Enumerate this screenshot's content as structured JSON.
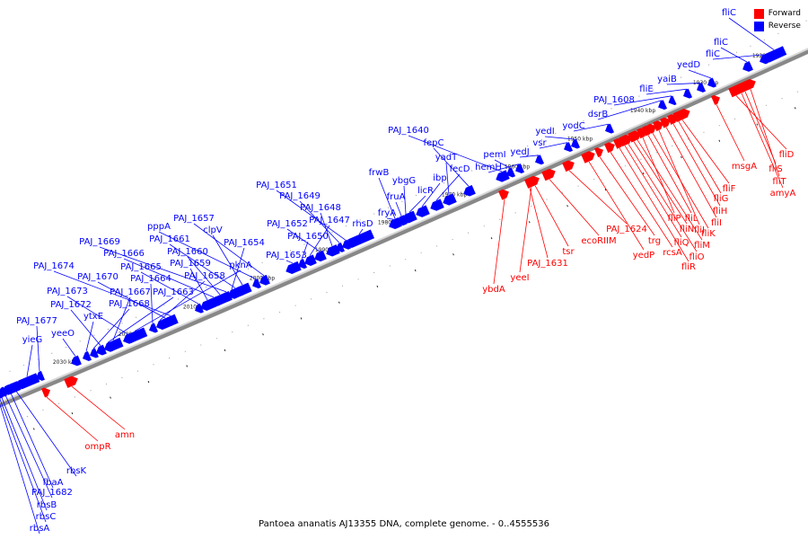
{
  "legend": {
    "forward_label": "Forward",
    "reverse_label": "Reverse",
    "forward_color": "#ff0000",
    "reverse_color": "#0000ff"
  },
  "caption": "Pantoea ananatis AJ13355 DNA, complete genome. - 0..4555536",
  "ticks": [
    "1920 kbp",
    "1930 kbp",
    "1940 kbp",
    "1950 kbp",
    "1960 kbp",
    "1970 kbp",
    "1980 kbp",
    "1990 kbp",
    "2000 kbp",
    "2010 kbp",
    "2020 kbp",
    "2030 kbp"
  ],
  "reverse_genes": [
    "fliC",
    "fliC",
    "fliC",
    "yedD",
    "yaiB",
    "fliE",
    "PAJ_1608",
    "dsrB",
    "yodC",
    "yedI",
    "vsr",
    "yedJ",
    "pemI",
    "hemH",
    "PAJ_1640",
    "fepC",
    "yadT",
    "fecD",
    "ibp",
    "licR",
    "frwB",
    "ybgG",
    "fruA",
    "fryA",
    "rhsD",
    "PAJ_1651",
    "PAJ_1649",
    "PAJ_1648",
    "PAJ_1652",
    "PAJ_1647",
    "PAJ_1650",
    "PAJ_1653",
    "PAJ_1657",
    "pppA",
    "clpV",
    "PAJ_1661",
    "PAJ_1654",
    "PAJ_1669",
    "PAJ_1660",
    "PAJ_1666",
    "PAJ_1659",
    "PAJ_1665",
    "PAJ_1674",
    "PAJ_1670",
    "PAJ_1658",
    "PAJ_1664",
    "pknA",
    "PAJ_1673",
    "PAJ_1667",
    "PAJ_1663",
    "PAJ_1672",
    "PAJ_1668",
    "ytxE",
    "PAJ_1677",
    "yieG",
    "yeeO",
    "rbsK",
    "fbaA",
    "PAJ_1682",
    "rbsB",
    "rbsC",
    "rbsA"
  ],
  "forward_genes": [
    "fliD",
    "fliS",
    "fliT",
    "amyA",
    "msgA",
    "fliF",
    "fliG",
    "fliH",
    "fliI",
    "fliJ",
    "fliK",
    "fliL",
    "fliP",
    "fliM",
    "fliN",
    "fliO",
    "fliQ",
    "fliR",
    "rcsA",
    "trg",
    "yedP",
    "PAJ_1624",
    "ecoRIIM",
    "tsr",
    "PAJ_1631",
    "yeeI",
    "ybdA",
    "amn",
    "ompR"
  ]
}
